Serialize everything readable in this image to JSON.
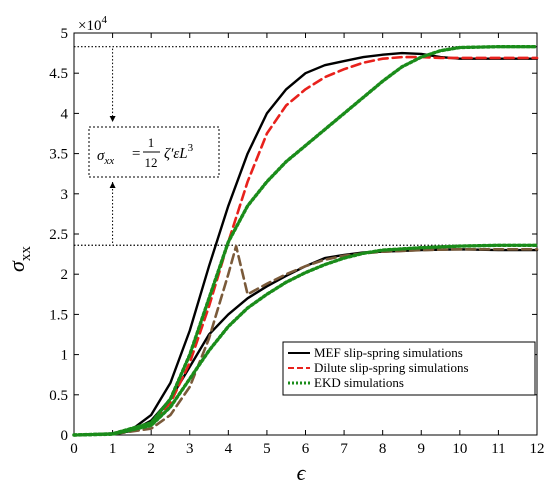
{
  "chart_data": {
    "type": "line",
    "xlabel": "ϵ",
    "ylabel_main": "σ",
    "ylabel_sub": "xx",
    "y_multiplier": "×10",
    "y_multiplier_exp": "4",
    "xlim": [
      0,
      12
    ],
    "ylim": [
      0,
      50000
    ],
    "x_ticks": [
      "0",
      "1",
      "2",
      "3",
      "4",
      "5",
      "6",
      "7",
      "8",
      "9",
      "10",
      "11",
      "12"
    ],
    "y_ticks": [
      "0",
      "0.5",
      "1",
      "1.5",
      "2",
      "2.5",
      "3",
      "3.5",
      "4",
      "4.5",
      "5"
    ],
    "grid": false,
    "legend_position": "lower-right",
    "annotation": {
      "lhs": "σ",
      "lhs_sub": "xx",
      "eq": "=",
      "frac_num": "1",
      "frac_den": "12",
      "rhs": "ζ′ε̇L",
      "rhs_exp": "3"
    },
    "reference_lines": [
      48300,
      23600
    ],
    "series": [
      {
        "name": "MEF slip-spring simulations",
        "color": "#000000",
        "dash": "solid",
        "curves": [
          [
            [
              0,
              0
            ],
            [
              1,
              200
            ],
            [
              1.5,
              700
            ],
            [
              2,
              2500
            ],
            [
              2.5,
              6500
            ],
            [
              3,
              13000
            ],
            [
              3.5,
              21000
            ],
            [
              4,
              28500
            ],
            [
              4.5,
              35000
            ],
            [
              5,
              40000
            ],
            [
              5.5,
              43000
            ],
            [
              6,
              45000
            ],
            [
              6.5,
              46000
            ],
            [
              7,
              46500
            ],
            [
              7.5,
              47000
            ],
            [
              8,
              47300
            ],
            [
              8.5,
              47500
            ],
            [
              9,
              47400
            ],
            [
              9.5,
              47000
            ],
            [
              10,
              46800
            ],
            [
              10.5,
              46800
            ],
            [
              11,
              46800
            ],
            [
              11.5,
              46800
            ],
            [
              12,
              46800
            ]
          ],
          [
            [
              0,
              0
            ],
            [
              1,
              150
            ],
            [
              1.5,
              500
            ],
            [
              2,
              1800
            ],
            [
              2.5,
              4500
            ],
            [
              3,
              8500
            ],
            [
              3.5,
              12500
            ],
            [
              4,
              15000
            ],
            [
              4.5,
              17000
            ],
            [
              5,
              18500
            ],
            [
              5.5,
              19800
            ],
            [
              6,
              21000
            ],
            [
              6.5,
              22000
            ],
            [
              7,
              22400
            ],
            [
              7.5,
              22700
            ],
            [
              8,
              22800
            ],
            [
              9,
              23000
            ],
            [
              10,
              23100
            ],
            [
              11,
              23000
            ],
            [
              12,
              23000
            ]
          ]
        ]
      },
      {
        "name": "Dilute slip-spring simulations",
        "color": "#e8211c",
        "dash": "dashed",
        "curves": [
          [
            [
              0,
              0
            ],
            [
              1,
              150
            ],
            [
              2,
              1500
            ],
            [
              2.5,
              4000
            ],
            [
              3,
              9000
            ],
            [
              3.5,
              16000
            ],
            [
              4,
              24000
            ],
            [
              4.5,
              31500
            ],
            [
              5,
              37500
            ],
            [
              5.5,
              41000
            ],
            [
              6,
              43000
            ],
            [
              6.5,
              44500
            ],
            [
              7,
              45500
            ],
            [
              7.5,
              46300
            ],
            [
              8,
              46800
            ],
            [
              8.5,
              47000
            ],
            [
              9,
              47000
            ],
            [
              9.5,
              46900
            ],
            [
              10,
              46900
            ],
            [
              10.5,
              46900
            ],
            [
              11,
              46900
            ],
            [
              12,
              46900
            ]
          ]
        ]
      },
      {
        "name": "Dilute slip-spring simulations",
        "color": "#7a5a3a",
        "dash": "dashed",
        "curves": [
          [
            [
              0,
              0
            ],
            [
              1,
              100
            ],
            [
              2,
              800
            ],
            [
              2.5,
              2500
            ],
            [
              3,
              6000
            ],
            [
              3.5,
              12000
            ],
            [
              4,
              20000
            ],
            [
              4.2,
              23500
            ],
            [
              4.5,
              17500
            ],
            [
              5,
              18800
            ],
            [
              5.5,
              20000
            ],
            [
              6,
              21000
            ],
            [
              6.5,
              21800
            ],
            [
              7,
              22300
            ],
            [
              7.5,
              22600
            ],
            [
              8,
              22800
            ],
            [
              9,
              23000
            ],
            [
              10,
              23100
            ],
            [
              11,
              23100
            ],
            [
              12,
              23100
            ]
          ]
        ]
      },
      {
        "name": "EKD simulations",
        "color": "#1a8c1a",
        "dash": "dotted",
        "curves": [
          [
            [
              0,
              0
            ],
            [
              1,
              150
            ],
            [
              2,
              1500
            ],
            [
              2.5,
              4500
            ],
            [
              3,
              10000
            ],
            [
              3.5,
              17000
            ],
            [
              4,
              24000
            ],
            [
              4.5,
              28500
            ],
            [
              5,
              31500
            ],
            [
              5.5,
              34000
            ],
            [
              6,
              36000
            ],
            [
              6.5,
              38000
            ],
            [
              7,
              40000
            ],
            [
              7.5,
              42000
            ],
            [
              8,
              44000
            ],
            [
              8.5,
              45800
            ],
            [
              9,
              47000
            ],
            [
              9.5,
              47800
            ],
            [
              10,
              48200
            ],
            [
              11,
              48300
            ],
            [
              12,
              48300
            ]
          ],
          [
            [
              0,
              0
            ],
            [
              1,
              100
            ],
            [
              2,
              1200
            ],
            [
              2.5,
              3500
            ],
            [
              3,
              7000
            ],
            [
              3.5,
              10500
            ],
            [
              4,
              13500
            ],
            [
              4.5,
              15800
            ],
            [
              5,
              17500
            ],
            [
              5.5,
              19000
            ],
            [
              6,
              20200
            ],
            [
              6.5,
              21200
            ],
            [
              7,
              22000
            ],
            [
              7.5,
              22600
            ],
            [
              8,
              23000
            ],
            [
              9,
              23300
            ],
            [
              10,
              23500
            ],
            [
              11,
              23600
            ],
            [
              12,
              23600
            ]
          ]
        ]
      }
    ]
  },
  "legend": {
    "items": [
      {
        "label": "MEF slip-spring simulations",
        "color": "#000000",
        "dash": "solid"
      },
      {
        "label": "Dilute slip-spring simulations",
        "color": "#e8211c",
        "dash": "dashed"
      },
      {
        "label": "EKD simulations",
        "color": "#1a8c1a",
        "dash": "dotted"
      }
    ]
  }
}
